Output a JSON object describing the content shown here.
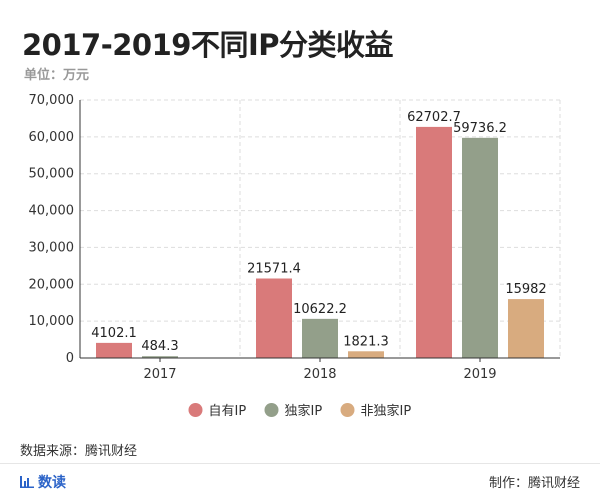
{
  "header": {
    "title": "2017-2019不同IP分类收益",
    "unit": "单位：万元"
  },
  "chart_data": {
    "type": "bar",
    "title": "2017-2019不同IP分类收益",
    "categories": [
      "2017",
      "2018",
      "2019"
    ],
    "series": [
      {
        "name": "自有IP",
        "color": "#d97a7a",
        "values": [
          4102.1,
          21571.4,
          62702.7
        ],
        "labels": [
          "4102.1",
          "21571.4",
          "62702.7"
        ]
      },
      {
        "name": "独家IP",
        "color": "#939f8a",
        "values": [
          484.3,
          10622.2,
          59736.2
        ],
        "labels": [
          "484.3",
          "10622.2",
          "59736.2"
        ]
      },
      {
        "name": "非独家IP",
        "color": "#d8ab7f",
        "values": [
          null,
          1821.3,
          15982
        ],
        "labels": [
          "",
          "1821.3",
          "15982"
        ]
      }
    ],
    "yticks": [
      "0",
      "10,000",
      "20,000",
      "30,000",
      "40,000",
      "50,000",
      "60,000",
      "70,000"
    ],
    "ylim": [
      0,
      70000
    ],
    "grid": true,
    "legend_position": "bottom"
  },
  "footer": {
    "source": "数据来源：腾讯财经",
    "brand": "数读",
    "credit": "制作：腾讯财经"
  }
}
